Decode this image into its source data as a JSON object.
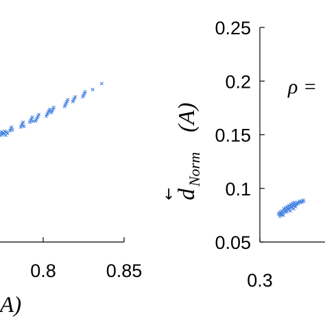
{
  "chart_data": [
    {
      "type": "scatter",
      "title": "",
      "xlabel_fragment": "A)",
      "ylabel": "",
      "xlim": [
        0.7,
        0.85
      ],
      "ylim": [
        0.0,
        1.0
      ],
      "x_ticks": [
        "0.8",
        "0.85"
      ],
      "x_tick_values": [
        0.8,
        0.85
      ],
      "grid": false,
      "legend": "none",
      "marker_color": "#3f7fe0",
      "marker": "x",
      "series": [
        {
          "points": [
            [
              0.7,
              0.45
            ],
            [
              0.701,
              0.44
            ],
            [
              0.702,
              0.455
            ],
            [
              0.703,
              0.445
            ],
            [
              0.704,
              0.452
            ],
            [
              0.705,
              0.447
            ],
            [
              0.706,
              0.458
            ],
            [
              0.707,
              0.441
            ],
            [
              0.708,
              0.454
            ],
            [
              0.709,
              0.449
            ],
            [
              0.712,
              0.46
            ],
            [
              0.713,
              0.468
            ],
            [
              0.714,
              0.475
            ],
            [
              0.715,
              0.463
            ],
            [
              0.725,
              0.475
            ],
            [
              0.726,
              0.482
            ],
            [
              0.727,
              0.489
            ],
            [
              0.728,
              0.495
            ],
            [
              0.729,
              0.478
            ],
            [
              0.736,
              0.495
            ],
            [
              0.737,
              0.502
            ],
            [
              0.738,
              0.509
            ],
            [
              0.739,
              0.516
            ],
            [
              0.74,
              0.499
            ],
            [
              0.743,
              0.5
            ],
            [
              0.744,
              0.507
            ],
            [
              0.745,
              0.513
            ],
            [
              0.746,
              0.52
            ],
            [
              0.747,
              0.527
            ],
            [
              0.756,
              0.52
            ],
            [
              0.757,
              0.528
            ],
            [
              0.758,
              0.534
            ],
            [
              0.759,
              0.541
            ],
            [
              0.76,
              0.548
            ],
            [
              0.762,
              0.535
            ],
            [
              0.763,
              0.542
            ],
            [
              0.764,
              0.549
            ],
            [
              0.765,
              0.556
            ],
            [
              0.778,
              0.56
            ],
            [
              0.779,
              0.567
            ],
            [
              0.78,
              0.574
            ],
            [
              0.781,
              0.581
            ],
            [
              0.782,
              0.588
            ],
            [
              0.788,
              0.58
            ],
            [
              0.789,
              0.587
            ],
            [
              0.79,
              0.594
            ],
            [
              0.791,
              0.6
            ],
            [
              0.8,
              0.6
            ],
            [
              0.801,
              0.607
            ],
            [
              0.802,
              0.614
            ],
            [
              0.803,
              0.621
            ],
            [
              0.812,
              0.63
            ],
            [
              0.823,
              0.655
            ]
          ]
        }
      ]
    },
    {
      "type": "scatter",
      "title": "",
      "xlabel": "",
      "ylabel_parts": {
        "symbol": "d",
        "subscript": "Norm",
        "argument": "(A)"
      },
      "annotation": "ρ =",
      "xlim": [
        0.3,
        0.45
      ],
      "ylim": [
        0.05,
        0.25
      ],
      "x_ticks": [
        "0.3"
      ],
      "x_tick_values": [
        0.3
      ],
      "y_ticks": [
        "0.05",
        "0.1",
        "0.15",
        "0.2",
        "0.25"
      ],
      "y_tick_values": [
        0.05,
        0.1,
        0.15,
        0.2,
        0.25
      ],
      "grid": false,
      "legend": "none",
      "marker_color": "#3f7fe0",
      "marker": "x",
      "series": [
        {
          "points": [
            [
              0.343,
              0.076
            ],
            [
              0.345,
              0.077
            ],
            [
              0.347,
              0.078
            ],
            [
              0.349,
              0.075
            ],
            [
              0.351,
              0.079
            ],
            [
              0.353,
              0.077
            ],
            [
              0.355,
              0.081
            ],
            [
              0.357,
              0.078
            ],
            [
              0.359,
              0.082
            ],
            [
              0.361,
              0.08
            ],
            [
              0.363,
              0.083
            ],
            [
              0.365,
              0.081
            ],
            [
              0.367,
              0.084
            ],
            [
              0.369,
              0.082
            ],
            [
              0.371,
              0.085
            ],
            [
              0.373,
              0.083
            ],
            [
              0.375,
              0.086
            ],
            [
              0.377,
              0.084
            ],
            [
              0.379,
              0.087
            ],
            [
              0.381,
              0.085
            ],
            [
              0.383,
              0.086
            ],
            [
              0.385,
              0.085
            ],
            [
              0.387,
              0.087
            ],
            [
              0.389,
              0.086
            ],
            [
              0.391,
              0.088
            ],
            [
              0.393,
              0.087
            ],
            [
              0.395,
              0.088
            ],
            [
              0.397,
              0.087
            ],
            [
              0.399,
              0.089
            ],
            [
              0.401,
              0.088
            ],
            [
              0.346,
              0.074
            ],
            [
              0.35,
              0.076
            ],
            [
              0.354,
              0.075
            ],
            [
              0.358,
              0.079
            ],
            [
              0.362,
              0.078
            ],
            [
              0.366,
              0.08
            ],
            [
              0.37,
              0.079
            ],
            [
              0.374,
              0.082
            ],
            [
              0.378,
              0.081
            ],
            [
              0.382,
              0.083
            ]
          ]
        }
      ]
    }
  ]
}
